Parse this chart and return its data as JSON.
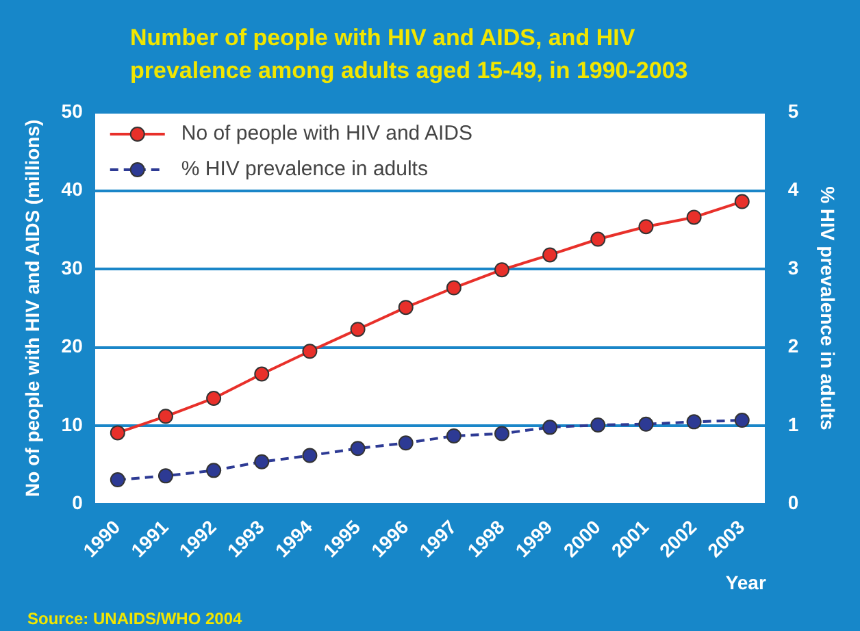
{
  "chart_data": {
    "type": "line",
    "title": "Number of people with HIV and AIDS, and HIV prevalence among adults aged 15-49, in 1990-2003",
    "xlabel": "Year",
    "ylabel": "No of people with HIV and AIDS (millions)",
    "y2label": "% HIV prevalence in adults",
    "annotations": [
      "Source: UNAIDS/WHO 2004"
    ],
    "categories": [
      "1990",
      "1991",
      "1992",
      "1993",
      "1994",
      "1995",
      "1996",
      "1997",
      "1998",
      "1999",
      "2000",
      "2001",
      "2002",
      "2003"
    ],
    "series": [
      {
        "name": "No of people with HIV and AIDS",
        "color": "#e8302a",
        "line_style": "solid",
        "values": [
          9.1,
          11.2,
          13.5,
          16.6,
          19.5,
          22.3,
          25.1,
          27.6,
          29.9,
          31.8,
          33.8,
          35.4,
          36.6,
          38.6
        ]
      },
      {
        "name": "% HIV prevalence in adults",
        "color": "#2d3a94",
        "line_style": "dashed",
        "axis": "y2",
        "values": [
          0.31,
          0.36,
          0.43,
          0.54,
          0.62,
          0.71,
          0.78,
          0.87,
          0.9,
          0.98,
          1.01,
          1.02,
          1.05,
          1.07
        ]
      }
    ],
    "ylim": [
      0,
      50
    ],
    "yticks": [
      0,
      10,
      20,
      30,
      40,
      50
    ],
    "y2lim": [
      0,
      5
    ],
    "y2ticks": [
      0,
      1,
      2,
      3,
      4,
      5
    ],
    "grid": "y",
    "legend": "top left",
    "marker": "circle"
  }
}
